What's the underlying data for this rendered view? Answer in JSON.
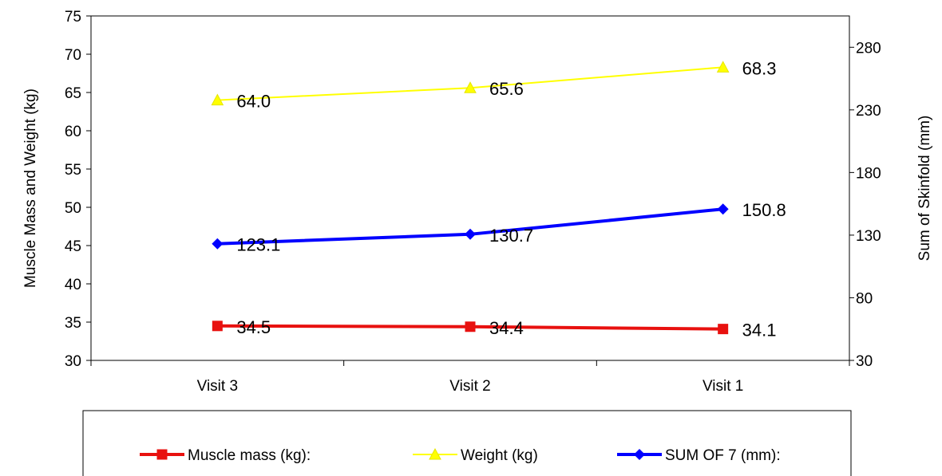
{
  "chart_data": {
    "type": "line",
    "categories": [
      "Visit 3",
      "Visit 2",
      "Visit 1"
    ],
    "ylabel": "Muscle Mass and Weight (kg)",
    "y2label": "Sum of Skinfold (mm)",
    "ylim": [
      30,
      75
    ],
    "yticks": [
      30,
      35,
      40,
      45,
      50,
      55,
      60,
      65,
      70,
      75
    ],
    "y2lim": [
      30,
      305
    ],
    "y2ticks": [
      30,
      80,
      130,
      180,
      230,
      280
    ],
    "grid": false,
    "legend_position": "bottom",
    "series": [
      {
        "name": "Muscle mass (kg):",
        "axis": "left",
        "values": [
          34.5,
          34.4,
          34.1
        ],
        "labels": [
          "34.5",
          "34.4",
          "34.1"
        ],
        "color": "#e8110f",
        "marker": "square"
      },
      {
        "name": "Weight (kg)",
        "axis": "left",
        "values": [
          64.0,
          65.6,
          68.3
        ],
        "labels": [
          "64.0",
          "65.6",
          "68.3"
        ],
        "color": "#ffff00",
        "marker": "triangle"
      },
      {
        "name": "SUM OF 7 (mm):",
        "axis": "right",
        "values": [
          123.1,
          130.7,
          150.8
        ],
        "labels": [
          "123.1",
          "130.7",
          "150.8"
        ],
        "color": "#0000ff",
        "marker": "diamond"
      }
    ]
  }
}
